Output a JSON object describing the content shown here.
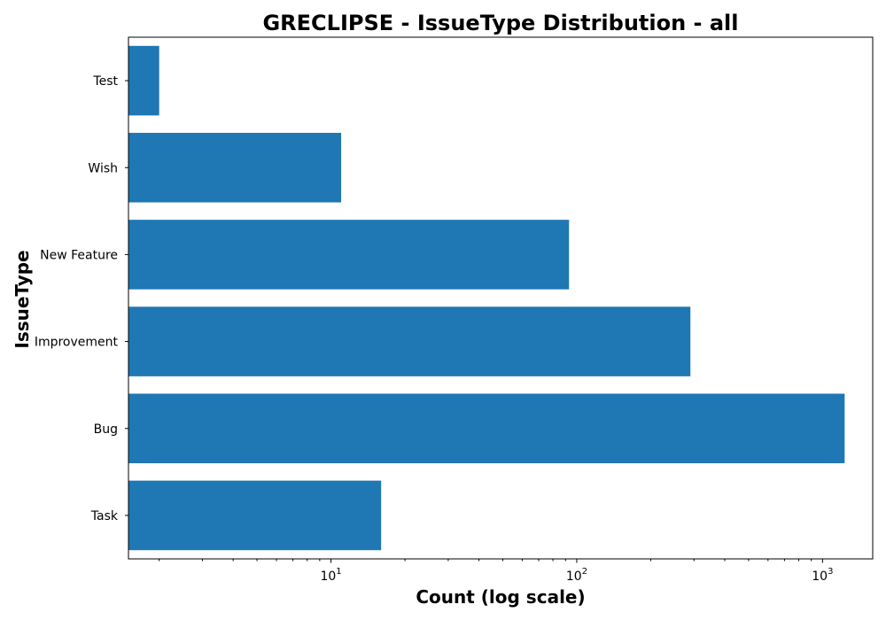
{
  "chart_data": {
    "type": "bar",
    "orientation": "horizontal",
    "title": "GRECLIPSE - IssueType Distribution - all",
    "xlabel": "Count (log scale)",
    "ylabel": "IssueType",
    "x_scale": "log",
    "xlim": [
      1.5,
      1600
    ],
    "x_ticks": [
      {
        "value": 10,
        "base": "10",
        "exp": "1"
      },
      {
        "value": 100,
        "base": "10",
        "exp": "2"
      },
      {
        "value": 1000,
        "base": "10",
        "exp": "3"
      }
    ],
    "categories": [
      "Task",
      "Bug",
      "Improvement",
      "New Feature",
      "Wish",
      "Test"
    ],
    "values": [
      16,
      1230,
      290,
      93,
      11,
      2
    ],
    "bar_color": "#1f77b4",
    "grid": false
  }
}
